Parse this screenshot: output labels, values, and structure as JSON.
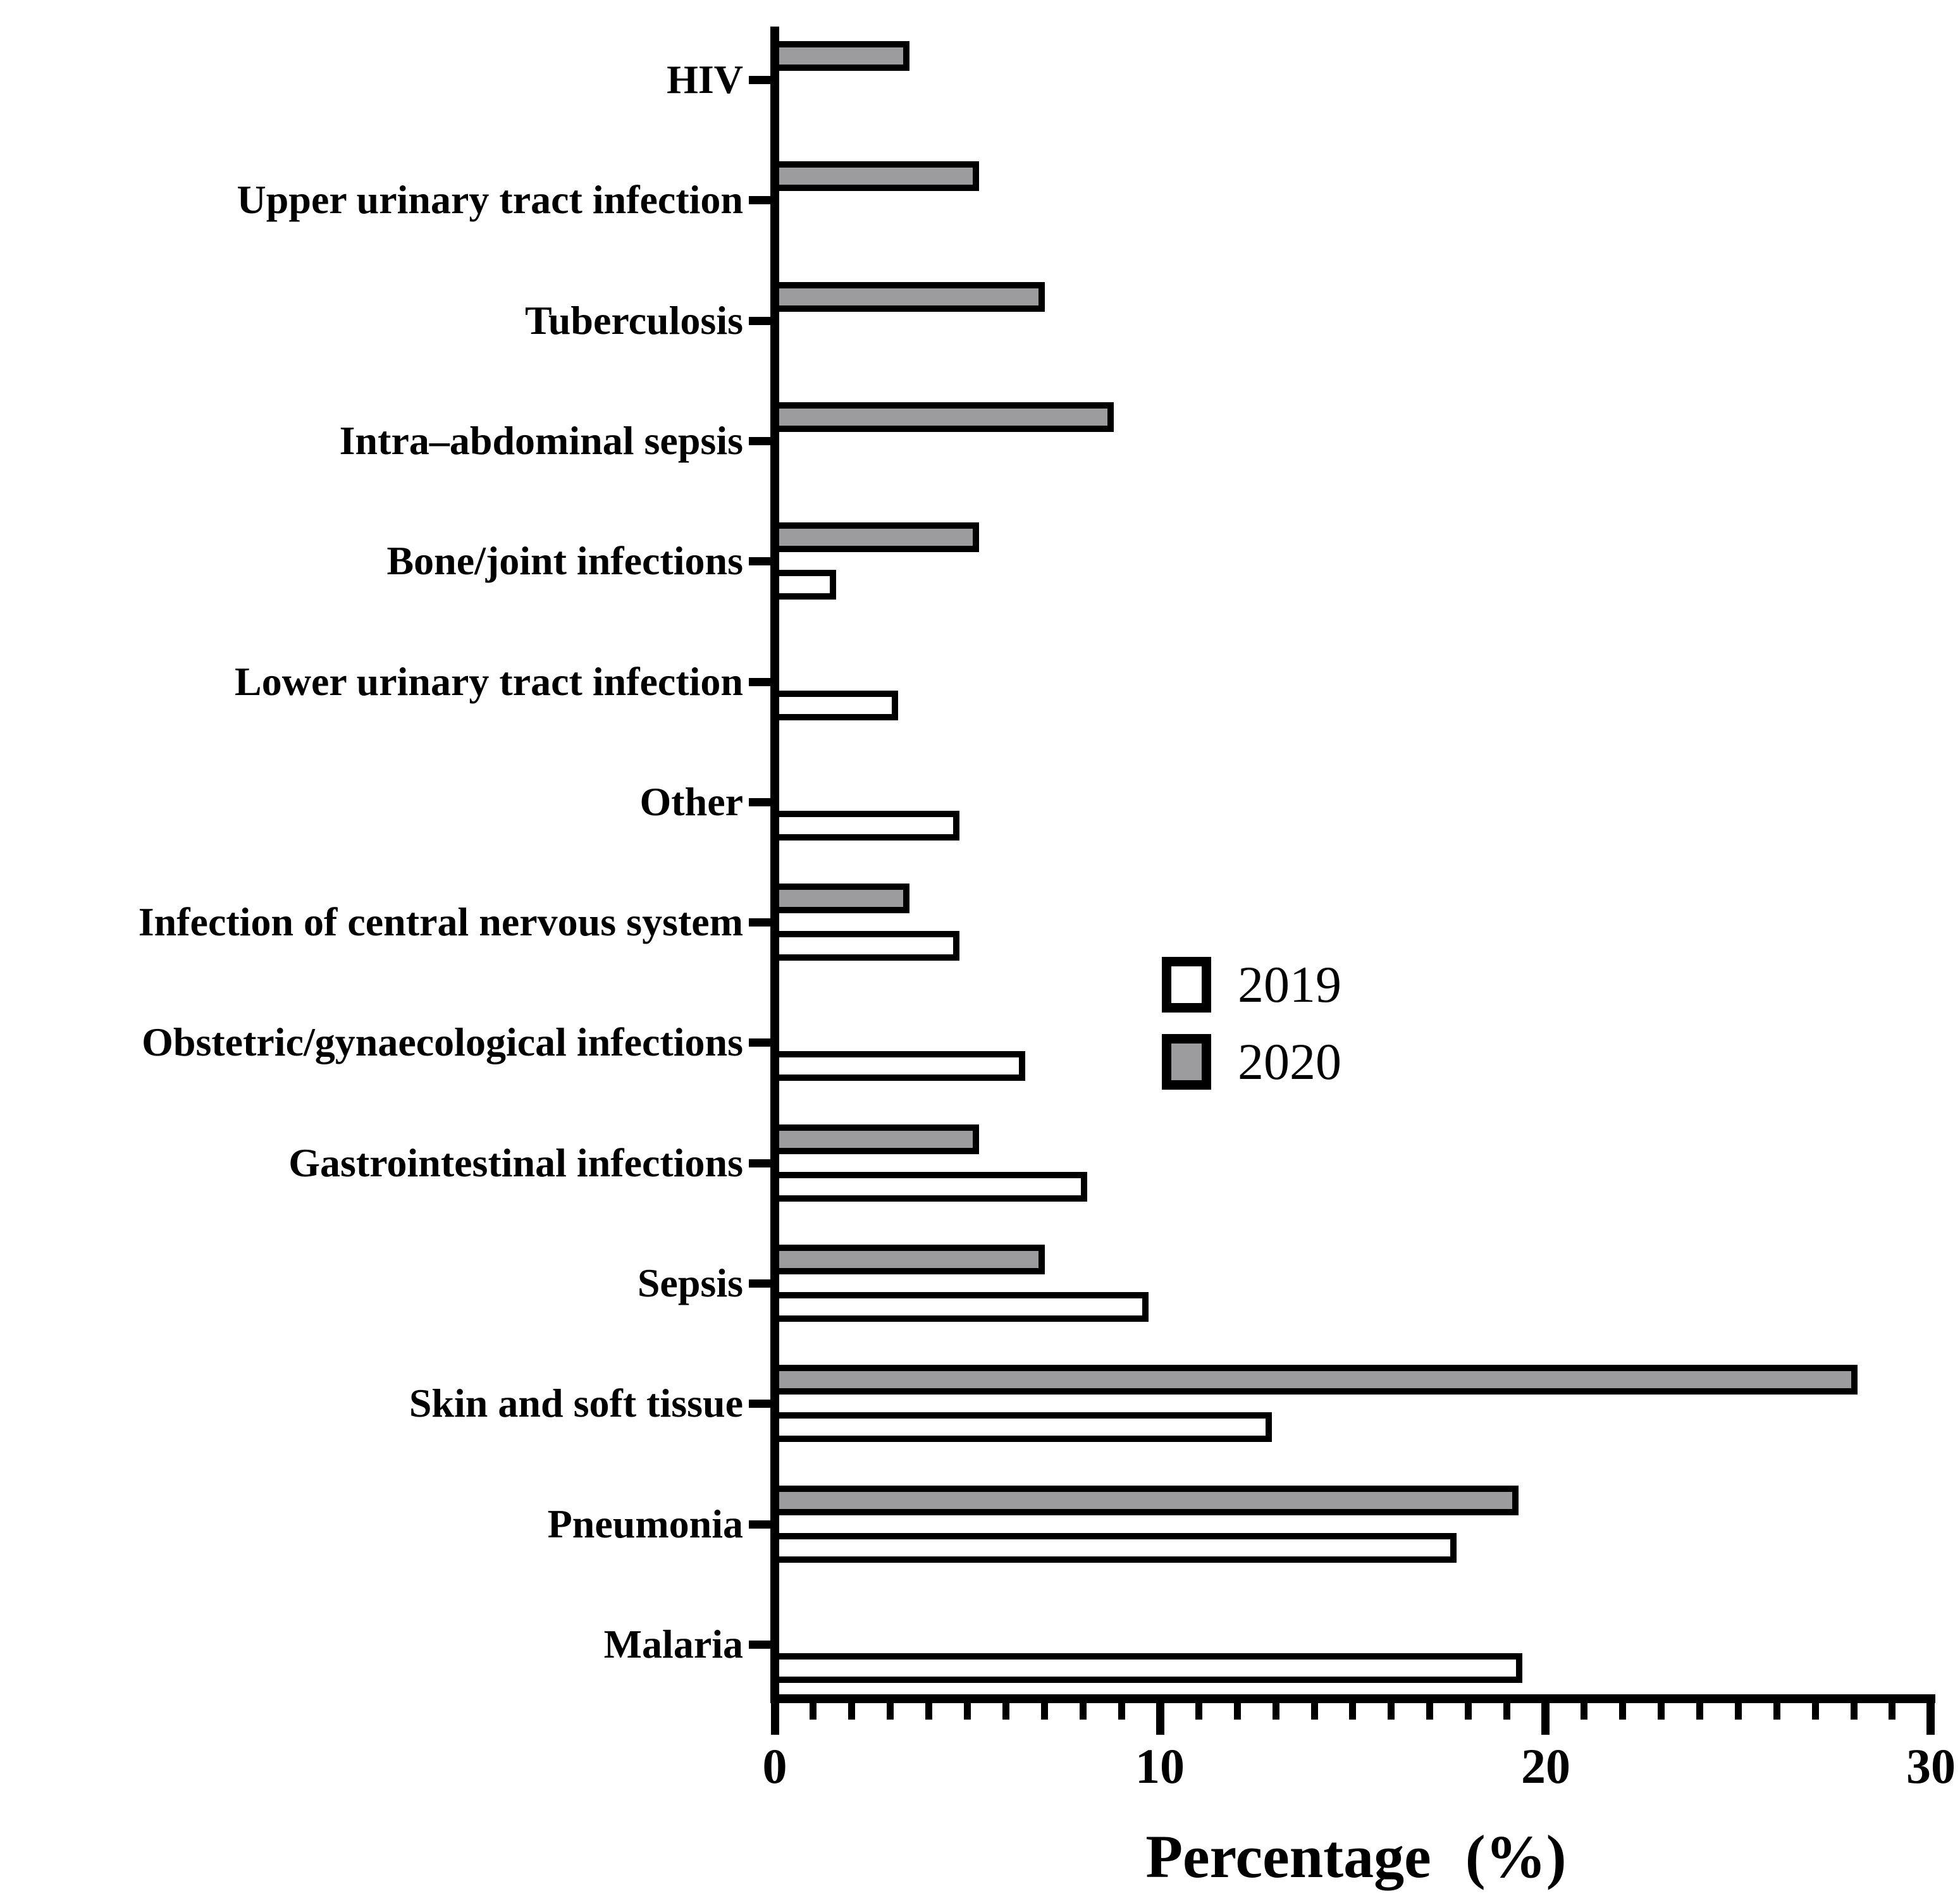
{
  "chart_data": {
    "type": "bar",
    "orientation": "horizontal",
    "title": "",
    "xlabel": "Percentage (%)",
    "ylabel": "",
    "xlim": [
      0,
      30
    ],
    "x_major_ticks": [
      0,
      10,
      20,
      30
    ],
    "x_minor_tick_step": 1,
    "grid": false,
    "legend_position": "center-right",
    "bar_outline_color": "#000000",
    "categories": [
      "HIV",
      "Upper urinary tract infection",
      "Tuberculosis",
      "Intra–abdominal sepsis",
      "Bone/joint infections",
      "Lower urinary tract infection",
      "Other",
      "Infection of central nervous system",
      "Obstetric/gynaecological infections",
      "Gastrointestinal infections",
      "Sepsis",
      "Skin and soft tissue",
      "Pneumonia",
      "Malaria"
    ],
    "series": [
      {
        "name": "2019",
        "fill": "#ffffff",
        "values": [
          0,
          0,
          0,
          0,
          1.6,
          3.2,
          4.8,
          4.8,
          6.5,
          8.1,
          9.7,
          12.9,
          17.7,
          19.4
        ]
      },
      {
        "name": "2020",
        "fill": "#9c9c9e",
        "values": [
          3.5,
          5.3,
          7.0,
          8.8,
          5.3,
          0,
          0,
          3.5,
          0,
          5.3,
          7.0,
          28.1,
          19.3,
          0
        ]
      }
    ]
  }
}
